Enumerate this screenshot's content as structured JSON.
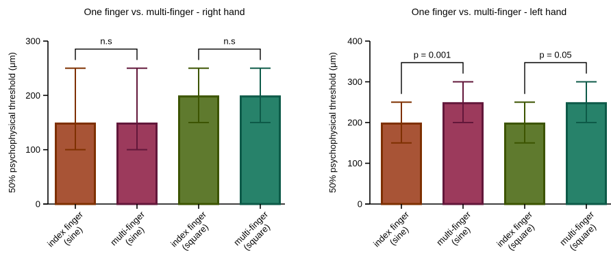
{
  "chart_data": [
    {
      "type": "bar",
      "title": "One finger vs. multi-finger - right hand",
      "ylabel": "50% psychophysical threshold (μm)",
      "ylim": [
        0,
        300
      ],
      "yticks": [
        "0",
        "100",
        "200",
        "300"
      ],
      "categories": [
        [
          "index finger",
          "(sine)"
        ],
        [
          "multi-finger",
          "(sine)"
        ],
        [
          "index finger",
          "(square)"
        ],
        [
          "multi-finger",
          "(square)"
        ]
      ],
      "values": [
        150,
        150,
        200,
        200
      ],
      "error_low": [
        100,
        100,
        150,
        150
      ],
      "error_high": [
        250,
        250,
        250,
        250
      ],
      "colors": [
        {
          "fill": "#a85436",
          "edge": "#7e3000"
        },
        {
          "fill": "#9c3a5c",
          "edge": "#62173a"
        },
        {
          "fill": "#5f7a2e",
          "edge": "#3c5400"
        },
        {
          "fill": "#27826a",
          "edge": "#0d5a48"
        }
      ],
      "comparisons": [
        {
          "from": 0,
          "to": 1,
          "label": "n.s"
        },
        {
          "from": 2,
          "to": 3,
          "label": "n.s"
        }
      ]
    },
    {
      "type": "bar",
      "title": "One finger vs. multi-finger - left hand",
      "ylabel": "50% psychophysical threshold (μm)",
      "ylim": [
        0,
        400
      ],
      "yticks": [
        "0",
        "100",
        "200",
        "300",
        "400"
      ],
      "categories": [
        [
          "index finger",
          "(sine)"
        ],
        [
          "multi-finger",
          "(sine)"
        ],
        [
          "index finger",
          "(square)"
        ],
        [
          "multi-finger",
          "(square)"
        ]
      ],
      "values": [
        200,
        250,
        200,
        250
      ],
      "error_low": [
        150,
        200,
        150,
        200
      ],
      "error_high": [
        250,
        300,
        250,
        300
      ],
      "colors": [
        {
          "fill": "#a85436",
          "edge": "#7e3000"
        },
        {
          "fill": "#9c3a5c",
          "edge": "#62173a"
        },
        {
          "fill": "#5f7a2e",
          "edge": "#3c5400"
        },
        {
          "fill": "#27826a",
          "edge": "#0d5a48"
        }
      ],
      "comparisons": [
        {
          "from": 0,
          "to": 1,
          "label": "p = 0.001"
        },
        {
          "from": 2,
          "to": 3,
          "label": "p = 0.05"
        }
      ]
    }
  ]
}
